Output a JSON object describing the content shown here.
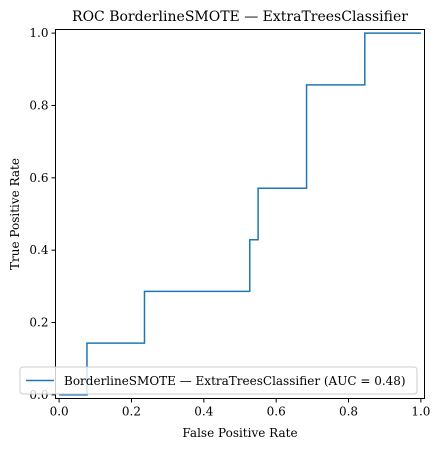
{
  "chart_data": {
    "type": "line",
    "title": "ROC BorderlineSMOTE — ExtraTreesClassifier",
    "xlabel": "False Positive Rate",
    "ylabel": "True Positive Rate",
    "xlim": [
      -0.01,
      1.01
    ],
    "ylim": [
      -0.01,
      1.01
    ],
    "xticks": [
      0.0,
      0.2,
      0.4,
      0.6,
      0.8,
      1.0
    ],
    "yticks": [
      0.0,
      0.2,
      0.4,
      0.6,
      0.8,
      1.0
    ],
    "xtick_labels": [
      "0.0",
      "0.2",
      "0.4",
      "0.6",
      "0.8",
      "1.0"
    ],
    "ytick_labels": [
      "0.0",
      "0.2",
      "0.4",
      "0.6",
      "0.8",
      "1.0"
    ],
    "grid": false,
    "legend_position": "lower-right",
    "series": [
      {
        "name": "BorderlineSMOTE — ExtraTreesClassifier (AUC = 0.48)",
        "color": "#1f77b4",
        "x": [
          0.0,
          0.0,
          0.077,
          0.077,
          0.236,
          0.236,
          0.527,
          0.527,
          0.55,
          0.55,
          0.684,
          0.684,
          0.845,
          0.845,
          1.0
        ],
        "y": [
          0.0,
          0.0,
          0.0,
          0.143,
          0.143,
          0.286,
          0.286,
          0.429,
          0.429,
          0.571,
          0.571,
          0.857,
          0.857,
          1.0,
          1.0
        ]
      }
    ]
  }
}
